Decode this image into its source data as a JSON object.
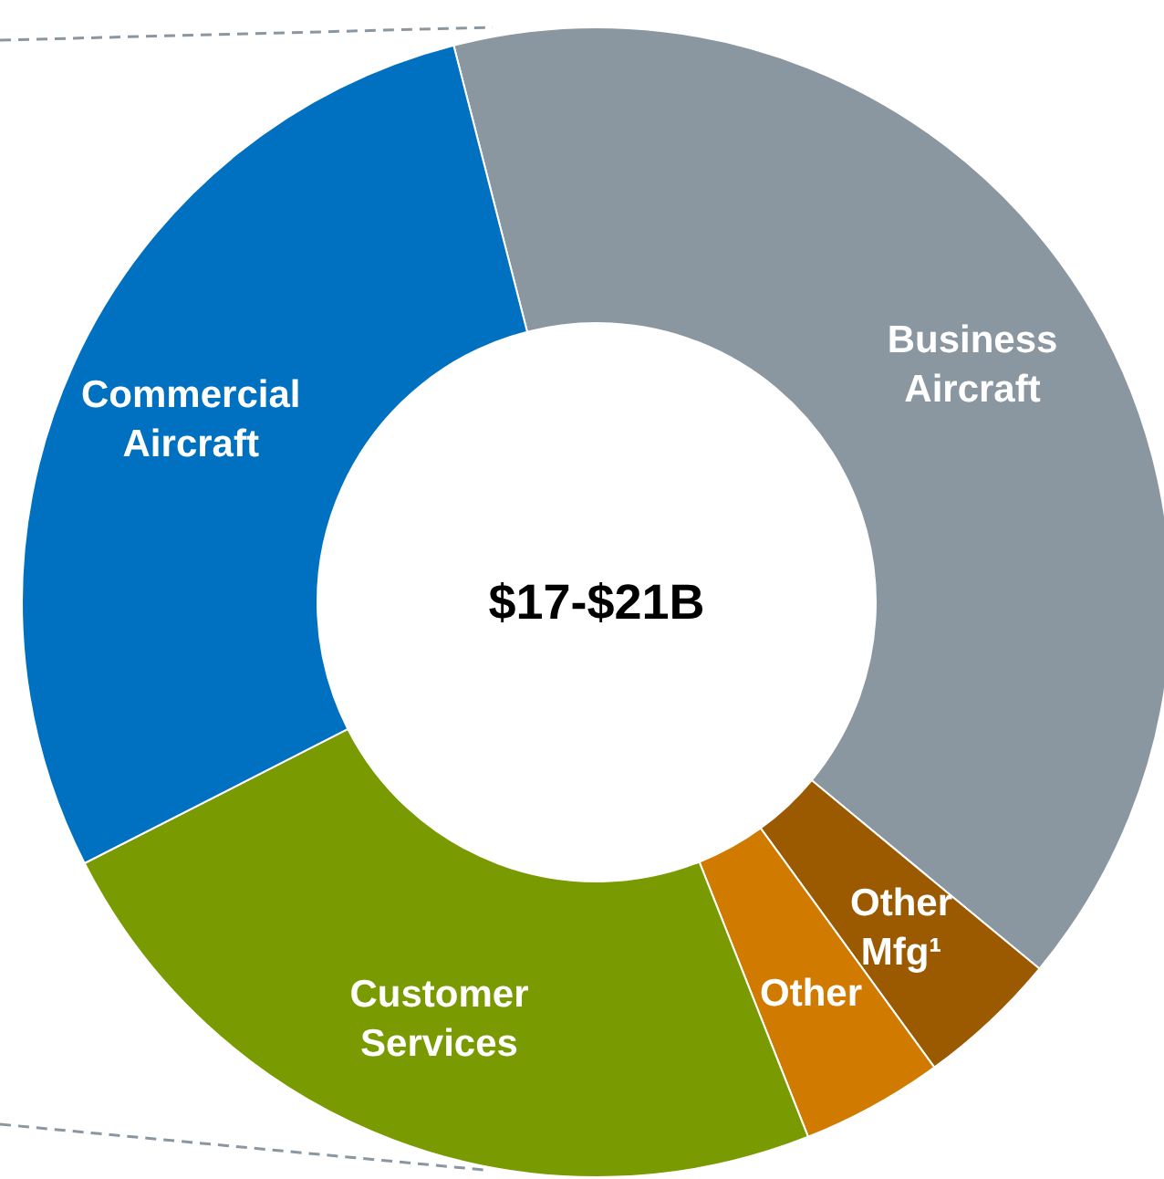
{
  "chart_data": {
    "type": "donut",
    "categories": [
      "Business Aircraft",
      "Other Mfg¹",
      "Other",
      "Customer Services",
      "Commercial Aircraft"
    ],
    "values": [
      40,
      4,
      4,
      23.5,
      28.5
    ],
    "colors": [
      "#8a96a0",
      "#9c5a00",
      "#d17a00",
      "#7a9a01",
      "#0070c0"
    ],
    "annotations": [
      "$17-$21B"
    ]
  }
}
